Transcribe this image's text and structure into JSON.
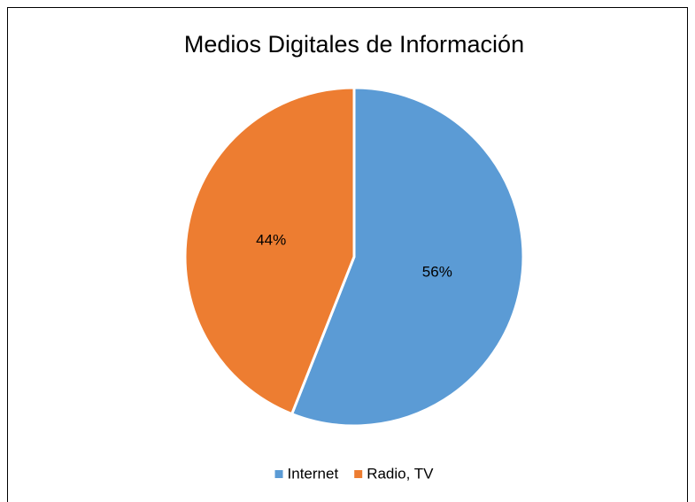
{
  "chart_data": {
    "type": "pie",
    "title": "Medios Digitales de Información",
    "categories": [
      "Internet",
      "Radio, TV"
    ],
    "values": [
      56,
      44
    ],
    "value_labels": [
      "56%",
      "44%"
    ],
    "colors": [
      "#5b9bd5",
      "#ed7d31"
    ],
    "legend": "bottom"
  }
}
